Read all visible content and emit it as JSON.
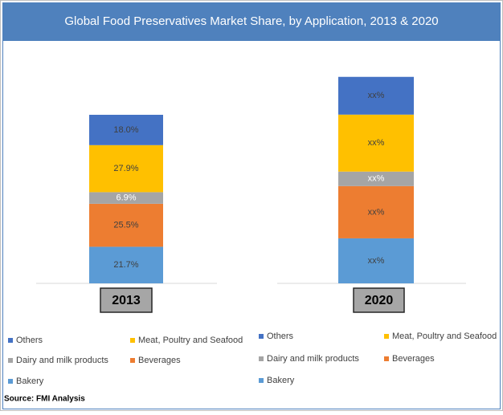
{
  "title": "Global Food Preservatives Market Share, by Application, 2013 & 2020",
  "source": "Source: FMI Analysis",
  "chart_data": [
    {
      "type": "stacked-bar",
      "categories": [
        "2013"
      ],
      "series": [
        {
          "name": "Bakery",
          "color": "#5b9bd5",
          "values": [
            21.7
          ],
          "value_labels": [
            "21.7%"
          ]
        },
        {
          "name": "Beverages",
          "color": "#ed7d31",
          "values": [
            25.5
          ],
          "value_labels": [
            "25.5%"
          ]
        },
        {
          "name": "Dairy and milk products",
          "color": "#a5a5a5",
          "values": [
            6.9
          ],
          "value_labels": [
            "6.9%"
          ]
        },
        {
          "name": "Meat, Poultry and Seafood",
          "color": "#ffc000",
          "values": [
            27.9
          ],
          "value_labels": [
            "27.9%"
          ]
        },
        {
          "name": "Others",
          "color": "#4472c4",
          "values": [
            18.0
          ],
          "value_labels": [
            "18.0%"
          ]
        }
      ]
    },
    {
      "type": "stacked-bar",
      "categories": [
        "2020"
      ],
      "series": [
        {
          "name": "Bakery",
          "color": "#5b9bd5",
          "values": [
            26.7
          ],
          "value_labels": [
            "xx%"
          ]
        },
        {
          "name": "Beverages",
          "color": "#ed7d31",
          "values": [
            31.0
          ],
          "value_labels": [
            "xx%"
          ]
        },
        {
          "name": "Dairy and milk products",
          "color": "#a5a5a5",
          "values": [
            8.6
          ],
          "value_labels": [
            "xx%"
          ]
        },
        {
          "name": "Meat, Poultry and Seafood",
          "color": "#ffc000",
          "values": [
            33.8
          ],
          "value_labels": [
            "xx%"
          ]
        },
        {
          "name": "Others",
          "color": "#4472c4",
          "values": [
            22.4
          ],
          "value_labels": [
            "xx%"
          ]
        }
      ]
    }
  ]
}
